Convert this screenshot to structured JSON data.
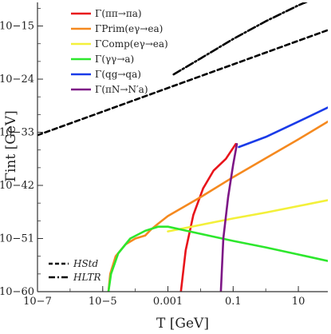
{
  "chart_data": {
    "type": "line",
    "title": "",
    "xlabel": "T [GeV]",
    "ylabel": "Γint [GeV]",
    "x_scale": "log",
    "y_scale": "log",
    "xlim": [
      1e-07,
      80
    ],
    "ylim_exp": [
      -60,
      -11
    ],
    "x_ticks": [
      {
        "value": 1e-07,
        "label": "10−7"
      },
      {
        "value": 1e-05,
        "label": "10−5"
      },
      {
        "value": 0.001,
        "label": "0.001"
      },
      {
        "value": 0.1,
        "label": "0.1"
      },
      {
        "value": 10,
        "label": "10"
      }
    ],
    "y_ticks": [
      {
        "exp": -60,
        "label": "10−60"
      },
      {
        "exp": -51,
        "label": "10−51"
      },
      {
        "exp": -42,
        "label": "10−42"
      },
      {
        "exp": -33,
        "label": "10−33"
      },
      {
        "exp": -24,
        "label": "10−24"
      },
      {
        "exp": -15,
        "label": "10−15"
      }
    ],
    "legend_placement": "top-left",
    "hubble_legend_placement": "bottom-left",
    "series": [
      {
        "name": "Γ(ππ→πa)",
        "color": "#e8141b",
        "dash": "solid",
        "points": [
          [
            0.0025,
            -60
          ],
          [
            0.0035,
            -53
          ],
          [
            0.006,
            -47
          ],
          [
            0.012,
            -42.5
          ],
          [
            0.025,
            -39.5
          ],
          [
            0.06,
            -37.5
          ],
          [
            0.12,
            -35
          ]
        ]
      },
      {
        "name": "ΓPrim(eγ→ea)",
        "color": "#f5891f",
        "dash": "solid",
        "points": [
          [
            1.5e-05,
            -60
          ],
          [
            1.7e-05,
            -57
          ],
          [
            2.5e-05,
            -54
          ],
          [
            5e-05,
            -52
          ],
          [
            0.0001,
            -51
          ],
          [
            0.0002,
            -50.5
          ],
          [
            0.0003,
            -49.5
          ],
          [
            0.0005,
            -48.5
          ],
          [
            0.001,
            -47.2
          ],
          [
            0.01,
            -44
          ],
          [
            0.1,
            -40.6
          ],
          [
            1,
            -37.4
          ],
          [
            10,
            -34.2
          ],
          [
            80,
            -31.2
          ]
        ]
      },
      {
        "name": "ΓComp(eγ→ea)",
        "color": "#f3f03a",
        "dash": "solid",
        "points": [
          [
            0.001,
            -49.8
          ],
          [
            0.01,
            -48.7
          ],
          [
            0.1,
            -47.6
          ],
          [
            1,
            -46.6
          ],
          [
            10,
            -45.5
          ],
          [
            80,
            -44.5
          ]
        ]
      },
      {
        "name": "Γ(γγ→a)",
        "color": "#2de72d",
        "dash": "solid",
        "points": [
          [
            1.5e-05,
            -60
          ],
          [
            1.8e-05,
            -57
          ],
          [
            3e-05,
            -53.5
          ],
          [
            7e-05,
            -51
          ],
          [
            0.0002,
            -49.7
          ],
          [
            0.0005,
            -49
          ],
          [
            0.001,
            -49
          ],
          [
            0.01,
            -50.2
          ],
          [
            0.1,
            -51.4
          ],
          [
            1,
            -52.5
          ],
          [
            10,
            -53.7
          ],
          [
            80,
            -54.8
          ]
        ]
      },
      {
        "name": "Γ(qg→qa)",
        "color": "#1a3be8",
        "dash": "solid",
        "points": [
          [
            0.15,
            -35.5
          ],
          [
            1,
            -33.8
          ],
          [
            10,
            -31.2
          ],
          [
            80,
            -28.8
          ]
        ]
      },
      {
        "name": "Γ(πN→N′a)",
        "color": "#7d1686",
        "dash": "solid",
        "points": [
          [
            0.042,
            -60
          ],
          [
            0.05,
            -51
          ],
          [
            0.07,
            -44
          ],
          [
            0.1,
            -38.5
          ],
          [
            0.13,
            -35
          ]
        ]
      },
      {
        "name": "HStd",
        "color": "#000000",
        "dash": "dashed",
        "points": [
          [
            1e-07,
            -33.5
          ],
          [
            1e-05,
            -29.5
          ],
          [
            0.001,
            -25.5
          ],
          [
            0.1,
            -21.5
          ],
          [
            10,
            -17.5
          ],
          [
            80,
            -15.7
          ]
        ]
      },
      {
        "name": "HLTR",
        "color": "#000000",
        "dash": "dashdot",
        "points": [
          [
            0.0015,
            -23.2
          ],
          [
            0.01,
            -20.5
          ],
          [
            0.1,
            -17.2
          ],
          [
            1,
            -14.2
          ],
          [
            10,
            -11.5
          ],
          [
            20,
            -10.8
          ]
        ]
      }
    ]
  }
}
